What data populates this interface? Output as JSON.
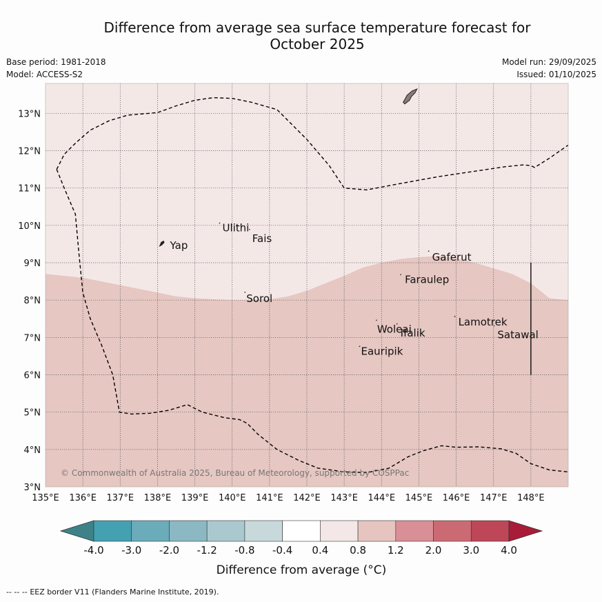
{
  "title_line1": "Difference from average sea surface temperature forecast for",
  "title_line2": "October 2025",
  "base_period": "Base period: 1981-2018",
  "model": "Model: ACCESS-S2",
  "model_run": "Model run: 29/09/2025",
  "issued": "Issued: 01/10/2025",
  "copyright": "© Commonwealth of Australia 2025, Bureau of Meteorology, supported by COSPPac",
  "footnote_line": "--  --  --",
  "footnote_text": "EEZ border V11 (Flanders Marine Institute, 2019).",
  "map": {
    "lon_range": [
      135,
      149
    ],
    "lat_range": [
      3,
      13.8
    ],
    "lon_ticks": [
      135,
      136,
      137,
      138,
      139,
      140,
      141,
      142,
      143,
      144,
      145,
      146,
      147,
      148
    ],
    "lon_labels": [
      "135°E",
      "136°E",
      "137°E",
      "138°E",
      "139°E",
      "140°E",
      "141°E",
      "142°E",
      "143°E",
      "144°E",
      "145°E",
      "146°E",
      "147°E",
      "148°E"
    ],
    "lat_ticks": [
      3,
      4,
      5,
      6,
      7,
      8,
      9,
      10,
      11,
      12,
      13
    ],
    "lat_labels": [
      "3°N",
      "4°N",
      "5°N",
      "6°N",
      "7°N",
      "8°N",
      "9°N",
      "10°N",
      "11°N",
      "12°N",
      "13°N"
    ],
    "anomaly_north": "0.4 to 0.8",
    "anomaly_south": "0.8 to 1.2",
    "color_north": "#f4e8e7",
    "color_south": "#e6c7c2",
    "region_boundary": [
      [
        135,
        8.7
      ],
      [
        136,
        8.6
      ],
      [
        137,
        8.4
      ],
      [
        138,
        8.2
      ],
      [
        138.5,
        8.1
      ],
      [
        139,
        8.05
      ],
      [
        140,
        8.0
      ],
      [
        141,
        8.02
      ],
      [
        141.5,
        8.1
      ],
      [
        142,
        8.25
      ],
      [
        142.5,
        8.45
      ],
      [
        143,
        8.65
      ],
      [
        143.5,
        8.87
      ],
      [
        144,
        9.0
      ],
      [
        144.5,
        9.1
      ],
      [
        145,
        9.15
      ],
      [
        145.5,
        9.18
      ],
      [
        146,
        9.12
      ],
      [
        146.5,
        9.0
      ],
      [
        147,
        8.85
      ],
      [
        147.5,
        8.7
      ],
      [
        148,
        8.45
      ],
      [
        148.5,
        8.05
      ],
      [
        149,
        8.0
      ]
    ],
    "eez_north": [
      [
        135.3,
        11.5
      ],
      [
        135.5,
        11.9
      ],
      [
        135.8,
        12.2
      ],
      [
        136.2,
        12.55
      ],
      [
        136.7,
        12.8
      ],
      [
        137.2,
        12.95
      ],
      [
        138,
        13.02
      ],
      [
        138.5,
        13.2
      ],
      [
        139,
        13.35
      ],
      [
        139.5,
        13.42
      ],
      [
        140,
        13.4
      ],
      [
        140.5,
        13.3
      ],
      [
        141.2,
        13.1
      ],
      [
        142,
        12.3
      ],
      [
        142.6,
        11.6
      ],
      [
        143,
        11.0
      ],
      [
        143.6,
        10.95
      ],
      [
        144.5,
        11.12
      ],
      [
        145.5,
        11.3
      ],
      [
        146.5,
        11.45
      ],
      [
        147.3,
        11.57
      ],
      [
        147.8,
        11.62
      ],
      [
        148,
        11.6
      ],
      [
        148.1,
        11.55
      ],
      [
        148.5,
        11.8
      ],
      [
        149,
        12.15
      ]
    ],
    "eez_west": [
      [
        135.3,
        11.5
      ],
      [
        135.5,
        11.0
      ],
      [
        135.8,
        10.3
      ],
      [
        135.9,
        9.2
      ],
      [
        136.0,
        8.2
      ],
      [
        136.2,
        7.5
      ],
      [
        136.5,
        6.8
      ],
      [
        136.8,
        6.0
      ],
      [
        136.98,
        5.0
      ],
      [
        137.3,
        4.95
      ],
      [
        137.8,
        4.97
      ],
      [
        138.3,
        5.05
      ],
      [
        138.8,
        5.2
      ],
      [
        139.2,
        5.0
      ],
      [
        139.8,
        4.85
      ],
      [
        140.2,
        4.8
      ],
      [
        140.4,
        4.7
      ],
      [
        140.7,
        4.4
      ],
      [
        141.2,
        4.0
      ],
      [
        141.8,
        3.7
      ],
      [
        142.3,
        3.5
      ],
      [
        143,
        3.4
      ],
      [
        143.6,
        3.38
      ],
      [
        144.2,
        3.5
      ],
      [
        144.7,
        3.8
      ],
      [
        145.1,
        3.96
      ],
      [
        145.6,
        4.1
      ],
      [
        146,
        4.06
      ],
      [
        146.6,
        4.07
      ],
      [
        147.2,
        4.02
      ],
      [
        147.6,
        3.9
      ],
      [
        148.0,
        3.62
      ],
      [
        148.5,
        3.45
      ],
      [
        149,
        3.4
      ]
    ],
    "islands": [
      {
        "name": "Yap",
        "lon": 138.15,
        "lat": 9.5,
        "label_dx": 10,
        "label_dy": 7
      },
      {
        "name": "Ulithi",
        "lon": 139.7,
        "lat": 9.95,
        "label_dx": 2,
        "label_dy": 6
      },
      {
        "name": "Fais",
        "lon": 140.5,
        "lat": 9.78,
        "label_dx": 2,
        "label_dy": 12
      },
      {
        "name": "Sorol",
        "lon": 140.38,
        "lat": 8.1,
        "label_dx": 0,
        "label_dy": 8
      },
      {
        "name": "Gaferut",
        "lon": 145.3,
        "lat": 9.2,
        "label_dx": 3,
        "label_dy": 8
      },
      {
        "name": "Faraulep",
        "lon": 144.55,
        "lat": 8.57,
        "label_dx": 4,
        "label_dy": 6
      },
      {
        "name": "Woleai",
        "lon": 143.9,
        "lat": 7.35,
        "label_dx": -1,
        "label_dy": 12
      },
      {
        "name": "Ifalik",
        "lon": 144.45,
        "lat": 7.25,
        "label_dx": 3,
        "label_dy": 12
      },
      {
        "name": "Lamotrek",
        "lon": 146.0,
        "lat": 7.45,
        "label_dx": 3,
        "label_dy": 7
      },
      {
        "name": "Satawal",
        "lon": 147.05,
        "lat": 7.2,
        "label_dx": 3,
        "label_dy": 12
      },
      {
        "name": "Eauripik",
        "lon": 143.45,
        "lat": 6.65,
        "label_dx": 0,
        "label_dy": 6
      }
    ],
    "guam": [
      [
        144.62,
        13.25
      ],
      [
        144.75,
        13.35
      ],
      [
        144.8,
        13.45
      ],
      [
        144.9,
        13.55
      ],
      [
        144.95,
        13.65
      ],
      [
        144.82,
        13.6
      ],
      [
        144.68,
        13.48
      ],
      [
        144.64,
        13.4
      ],
      [
        144.58,
        13.3
      ]
    ],
    "boundary_line": [
      [
        148,
        6.0
      ],
      [
        148,
        9.0
      ]
    ]
  },
  "colorbar": {
    "labels": [
      "-4.0",
      "-3.0",
      "-2.0",
      "-1.2",
      "-0.8",
      "-0.4",
      "0.4",
      "0.8",
      "1.2",
      "2.0",
      "3.0",
      "4.0"
    ],
    "colors": [
      "#44a1b1",
      "#6aacba",
      "#8bb8c3",
      "#aac9cf",
      "#c8d9dc",
      "#ffffff",
      "#f3e8e7",
      "#e6c5c1",
      "#d98f96",
      "#cc6a74",
      "#bd4757"
    ],
    "low_color": "#3e8288",
    "high_color": "#a81c38",
    "label": "Difference from average (°C)"
  }
}
